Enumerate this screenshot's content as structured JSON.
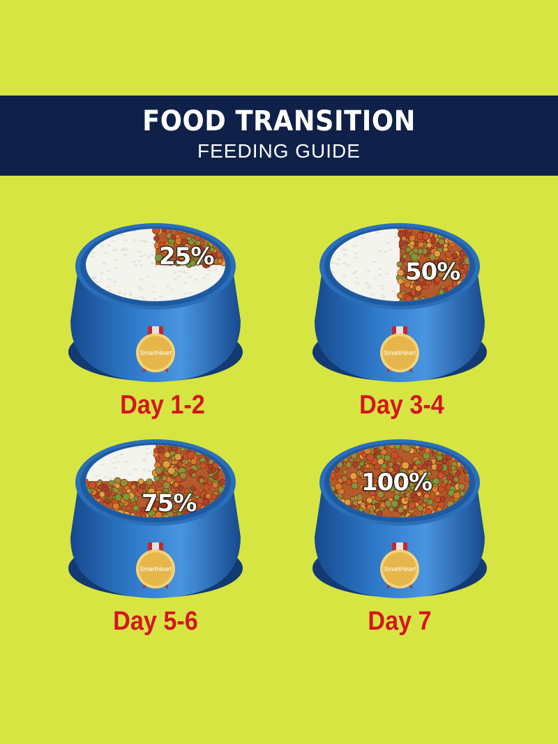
{
  "colors": {
    "background": "#d6e542",
    "banner": "#0f2148",
    "day_label": "#d4161e",
    "bowl_blue": "#2d78c8",
    "ribbon_red": "#c4272e",
    "medal_gold": "#e7b64a",
    "rice": "#f4f4ef"
  },
  "header": {
    "title": "FOOD TRANSITION",
    "subtitle": "FEEDING GUIDE"
  },
  "stages": [
    {
      "day": "Day 1-2",
      "percent_label": "25%",
      "new_food_fraction": 0.25,
      "brand": "SmartHeart"
    },
    {
      "day": "Day 3-4",
      "percent_label": "50%",
      "new_food_fraction": 0.5,
      "brand": "SmartHeart"
    },
    {
      "day": "Day 5-6",
      "percent_label": "75%",
      "new_food_fraction": 0.75,
      "brand": "SmartHeart"
    },
    {
      "day": "Day 7",
      "percent_label": "100%",
      "new_food_fraction": 1.0,
      "brand": "SmartHeart"
    }
  ]
}
